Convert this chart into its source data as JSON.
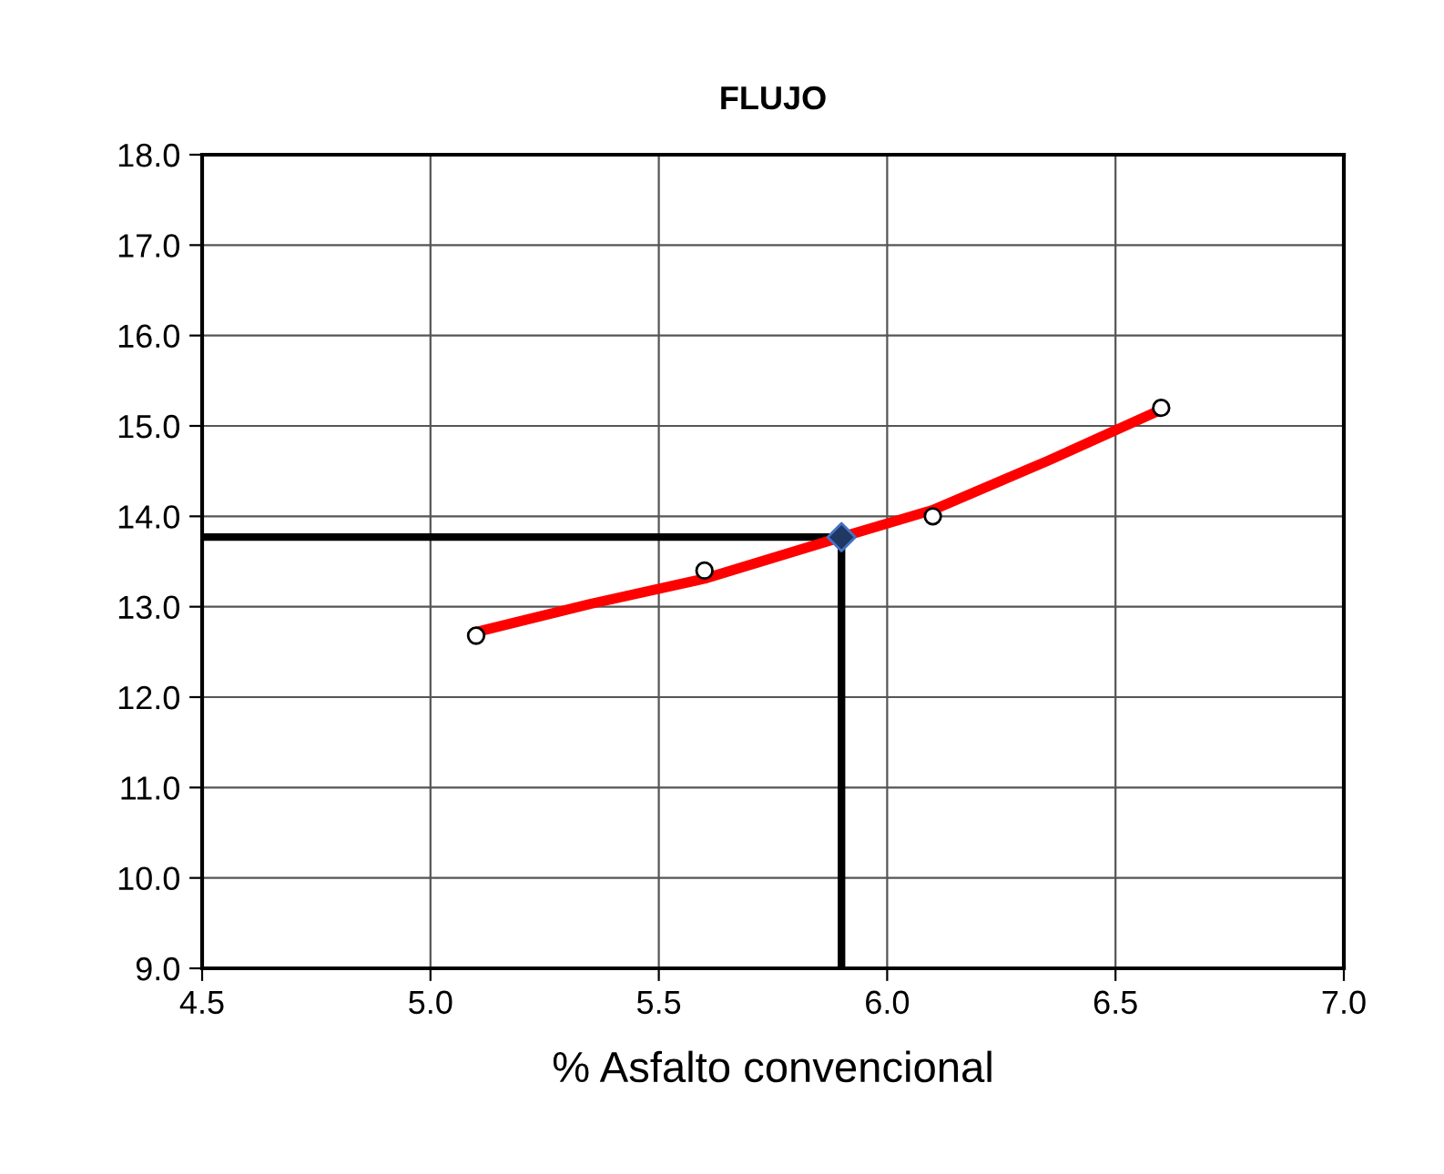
{
  "chart_data": {
    "type": "scatter",
    "title": "FLUJO",
    "xlabel": "% Asfalto convencional",
    "xlim": [
      4.5,
      7.0
    ],
    "xticks": [
      {
        "value": 4.5,
        "label": "4.5"
      },
      {
        "value": 5.0,
        "label": "5.0"
      },
      {
        "value": 5.5,
        "label": "5.5"
      },
      {
        "value": 6.0,
        "label": "6.0"
      },
      {
        "value": 6.5,
        "label": "6.5"
      },
      {
        "value": 7.0,
        "label": "7.0"
      }
    ],
    "ylim": [
      9.0,
      18.0
    ],
    "yticks": [
      {
        "value": 9,
        "label": "9.0"
      },
      {
        "value": 10,
        "label": "10.0"
      },
      {
        "value": 11,
        "label": "11.0"
      },
      {
        "value": 12,
        "label": "12.0"
      },
      {
        "value": 13,
        "label": "13.0"
      },
      {
        "value": 14,
        "label": "14.0"
      },
      {
        "value": 15,
        "label": "15.0"
      },
      {
        "value": 16,
        "label": "16.0"
      },
      {
        "value": 17,
        "label": "17.0"
      },
      {
        "value": 18,
        "label": "18.0"
      }
    ],
    "grid": true,
    "series": [
      {
        "type": "line",
        "color": "#000000",
        "x": [
          4.5,
          5.9
        ],
        "values": [
          13.77,
          13.77
        ],
        "marker": "none"
      },
      {
        "type": "line",
        "color": "#000000",
        "x": [
          5.9,
          5.9
        ],
        "values": [
          9.0,
          13.77
        ],
        "marker": "none"
      },
      {
        "type": "line",
        "color": "#ff0000",
        "x": [
          5.1,
          5.35,
          5.6,
          5.9,
          6.1,
          6.35,
          6.6
        ],
        "values": [
          12.72,
          13.03,
          13.31,
          13.77,
          14.07,
          14.61,
          15.18
        ],
        "marker": "none"
      },
      {
        "color": "#000000",
        "x": [
          5.1,
          5.6,
          6.1,
          6.6
        ],
        "values": [
          12.68,
          13.4,
          14.0,
          15.2
        ],
        "marker": "circle"
      },
      {
        "color": "#4472c4",
        "x": [
          5.9
        ],
        "values": [
          13.77
        ],
        "marker": "diamond"
      }
    ]
  }
}
